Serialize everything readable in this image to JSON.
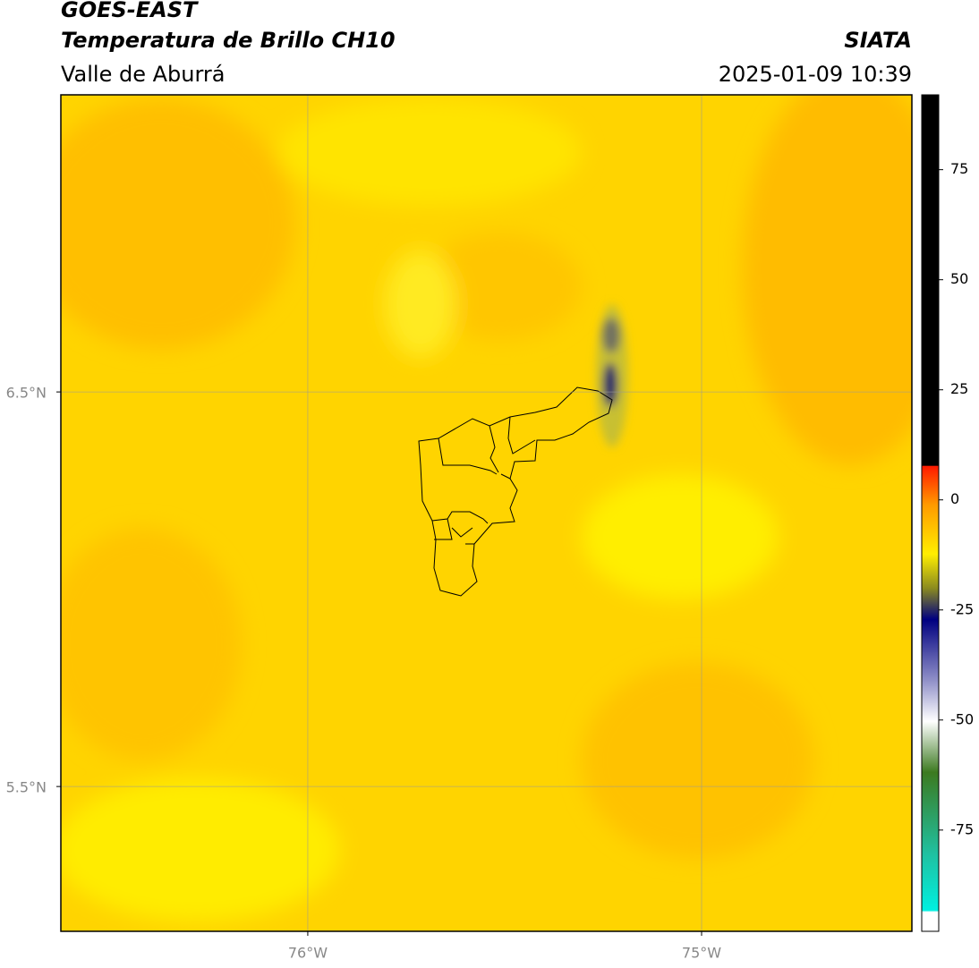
{
  "header": {
    "title": "GOES-EAST",
    "subtitle": "Temperatura de Brillo CH10",
    "region": "Valle de Aburrá",
    "source": "SIATA",
    "datetime": "2025-01-09 10:39"
  },
  "map": {
    "xlim": [
      -76.627,
      -74.466
    ],
    "ylim": [
      5.133,
      7.253
    ],
    "xticks": [
      {
        "value": -76,
        "label": "76°W"
      },
      {
        "value": -75,
        "label": "75°W"
      }
    ],
    "yticks": [
      {
        "value": 5.5,
        "label": "5.5°N"
      },
      {
        "value": 6.5,
        "label": "6.5°N"
      }
    ],
    "grid": true
  },
  "colorbar": {
    "lim": [
      -98,
      92
    ],
    "ticks": [
      -75,
      -50,
      -25,
      0,
      25,
      50,
      75
    ]
  }
}
